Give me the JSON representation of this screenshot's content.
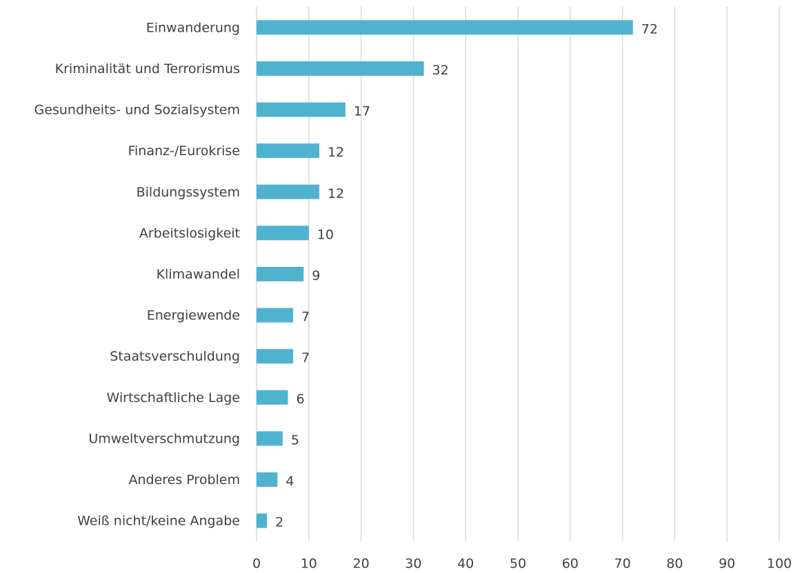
{
  "chart_data": {
    "type": "barh",
    "categories": [
      "Einwanderung",
      "Kriminalität und Terrorismus",
      "Gesundheits- und Sozialsystem",
      "Finanz-/Eurokrise",
      "Bildungssystem",
      "Arbeitslosigkeit",
      "Klimawandel",
      "Energiewende",
      "Staatsverschuldung",
      "Wirtschaftliche Lage",
      "Umweltverschmutzung",
      "Anderes Problem",
      "Weiß nicht/keine Angabe"
    ],
    "values": [
      72,
      32,
      17,
      12,
      12,
      10,
      9,
      7,
      7,
      6,
      5,
      4,
      2
    ],
    "color": "#4fb3cf",
    "xlim": [
      0,
      100
    ],
    "xticks": [
      0,
      10,
      20,
      30,
      40,
      50,
      60,
      70,
      80,
      90,
      100
    ],
    "grid": true
  }
}
